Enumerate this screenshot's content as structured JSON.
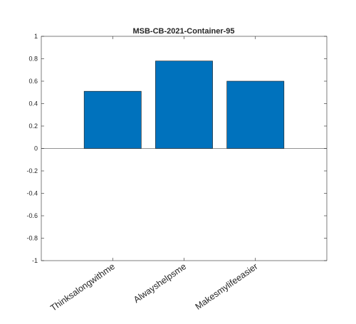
{
  "chart_data": {
    "type": "bar",
    "title": "MSB-CB-2021-Container-95",
    "xlabel": "",
    "ylabel": "",
    "categories": [
      "Thinksalongwithme",
      "Alwayshelpsme",
      "Makesmylifeeasier"
    ],
    "values": [
      0.51,
      0.78,
      0.6
    ],
    "ylim": [
      -1,
      1
    ],
    "yticks": [
      "-1",
      "-0.8",
      "-0.6",
      "-0.4",
      "-0.2",
      "0",
      "0.2",
      "0.4",
      "0.6",
      "0.8",
      "1"
    ],
    "xlim": [
      0,
      4
    ],
    "grid": false,
    "legend": "none",
    "colors": {
      "bar": "#0072BD",
      "bar_edge": "#1a1a1a",
      "axis": "#262626"
    }
  }
}
